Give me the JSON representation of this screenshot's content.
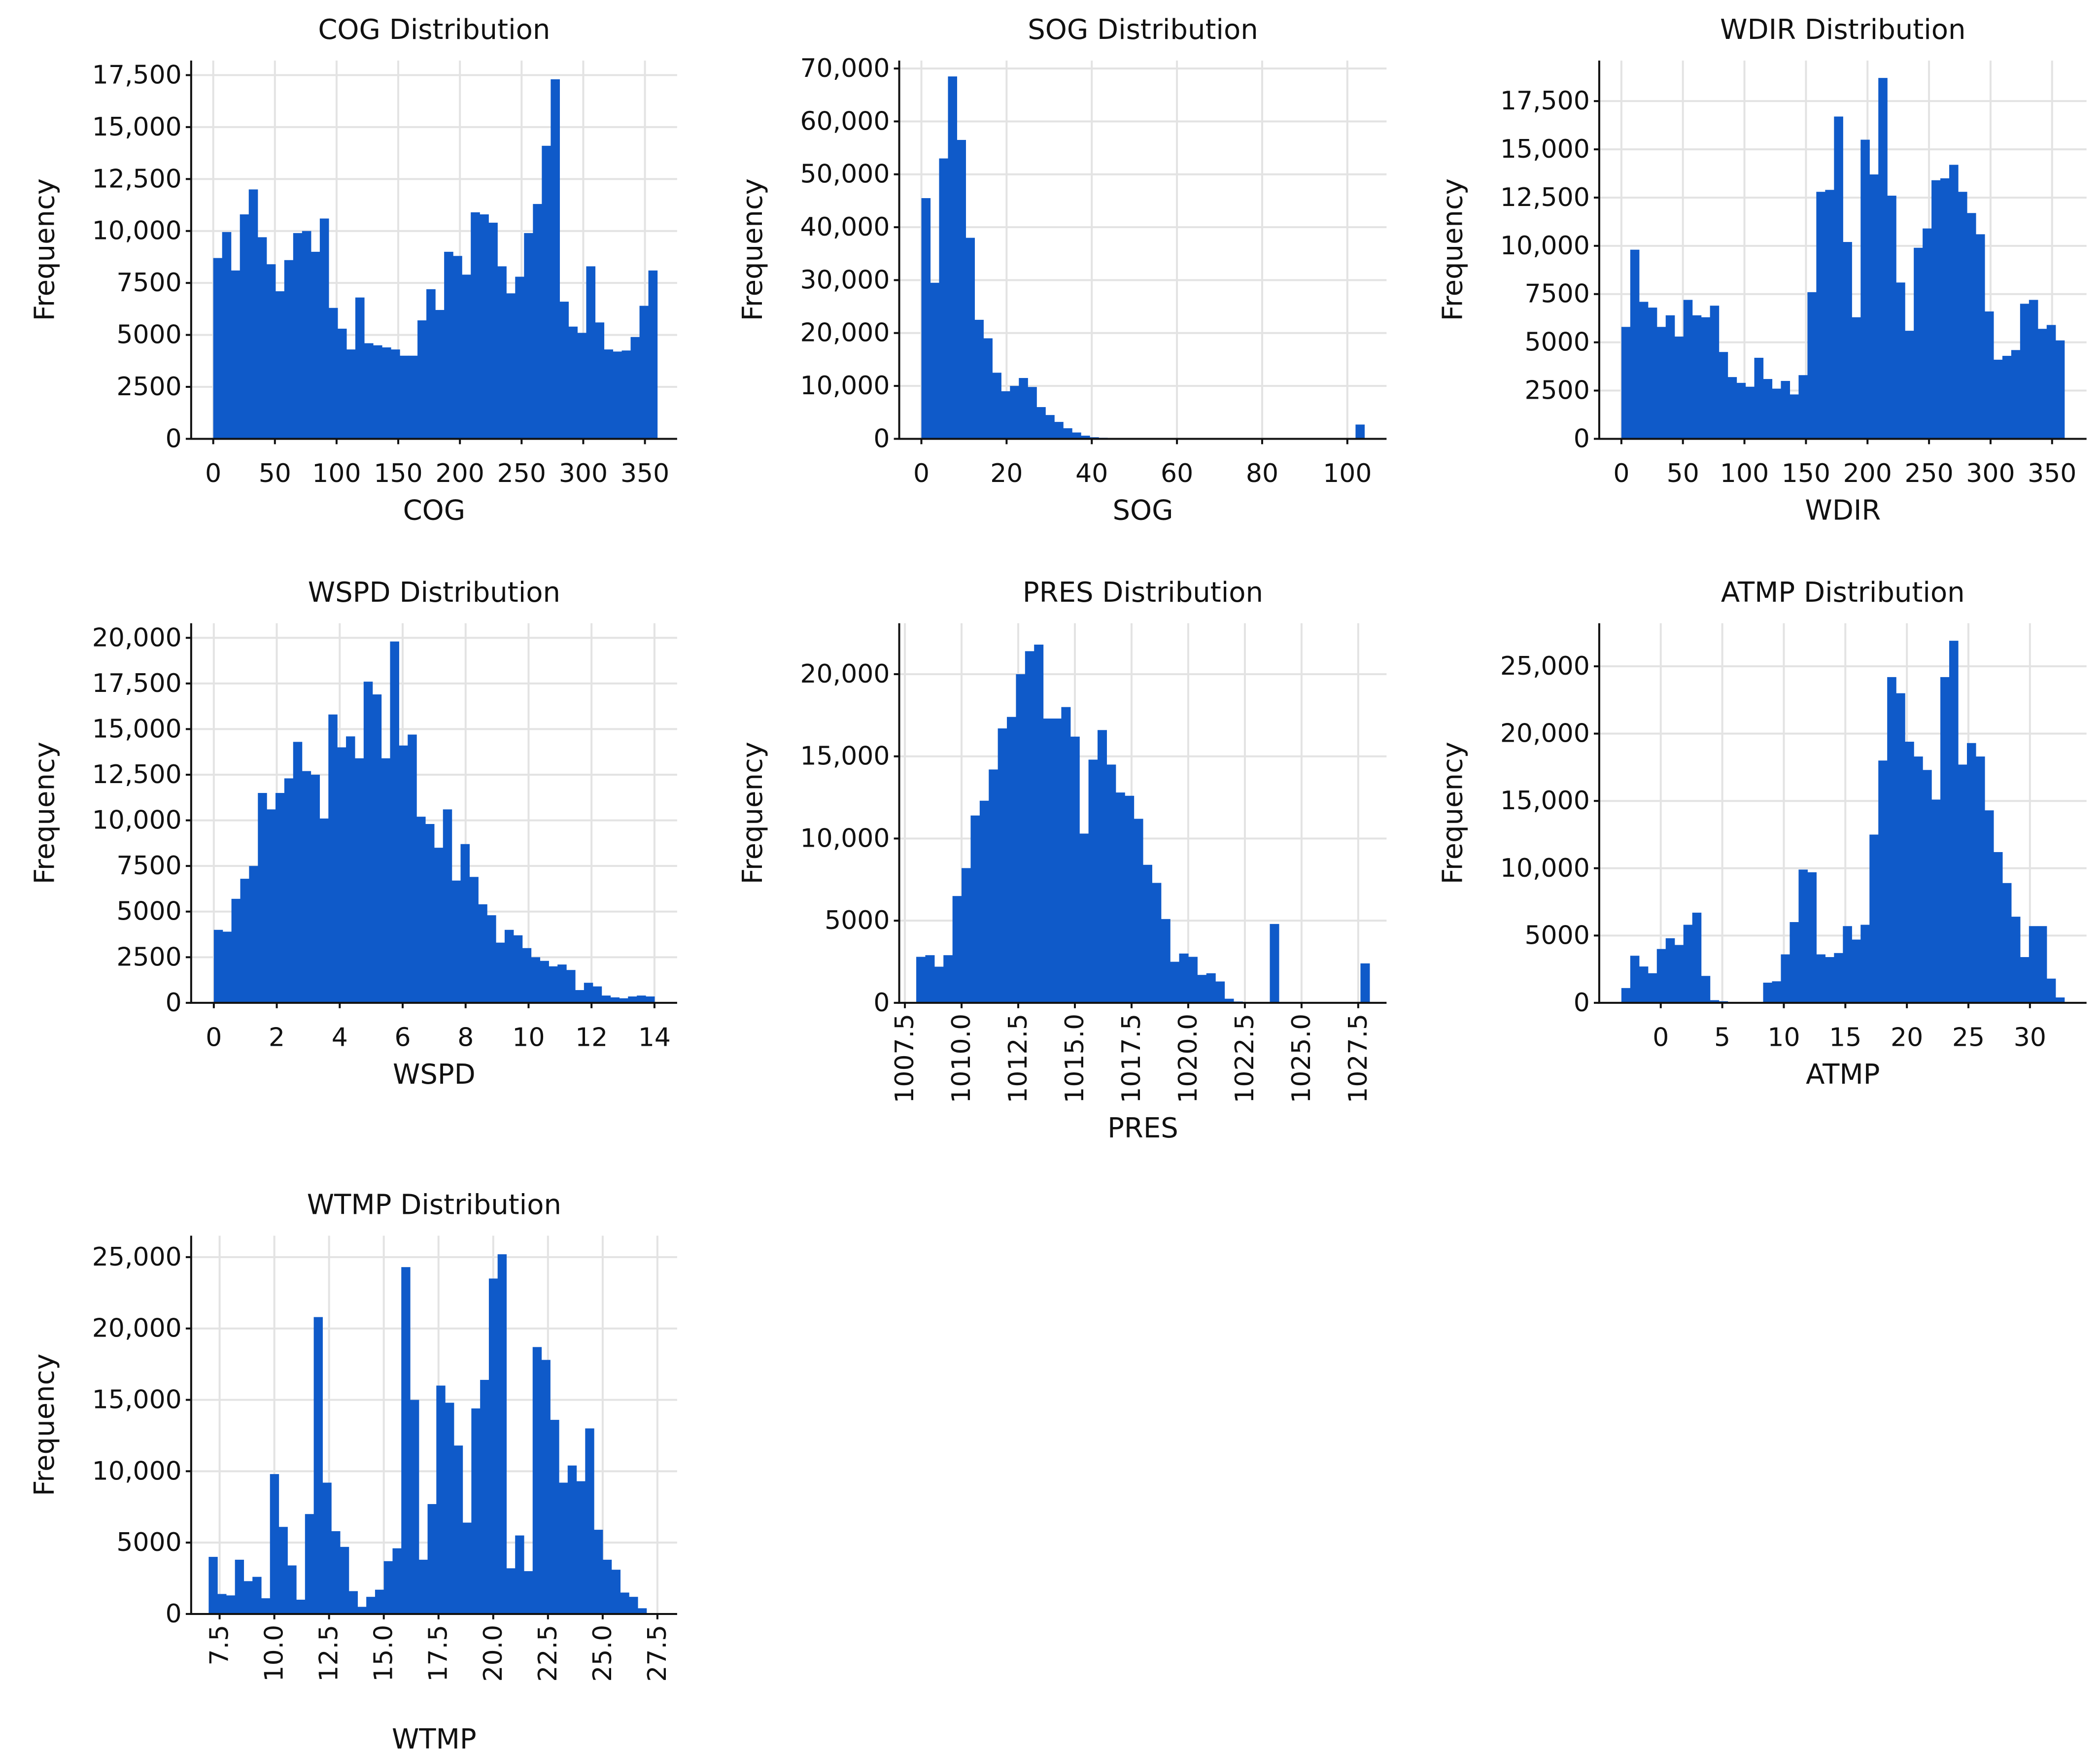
{
  "bar_color": "#0f5ac9",
  "chart_data": [
    {
      "type": "histogram",
      "title": "COG Distribution",
      "xlabel": "COG",
      "ylabel": "Frequency",
      "xlim": [
        -17.9,
        376.1
      ],
      "ylim": [
        0,
        18200
      ],
      "grid": true,
      "xtick_rotation": 0,
      "xticks": [
        0,
        50,
        100,
        150,
        200,
        250,
        300,
        350
      ],
      "xtick_labels": [
        "0",
        "50",
        "100",
        "150",
        "200",
        "250",
        "300",
        "350"
      ],
      "yticks": [
        0,
        2500,
        5000,
        7500,
        10000,
        12500,
        15000,
        17500
      ],
      "ytick_labels": [
        "0",
        "2500",
        "5000",
        "7500",
        "10,000",
        "12,500",
        "15,000",
        "17,500"
      ],
      "bin_start": 0,
      "bin_width": 7.2,
      "values": [
        8700,
        9950,
        8100,
        10800,
        12000,
        9700,
        8400,
        7100,
        8600,
        9900,
        10000,
        9000,
        10600,
        6300,
        5300,
        4300,
        6800,
        4600,
        4500,
        4400,
        4300,
        4000,
        4000,
        5700,
        7200,
        6200,
        9000,
        8800,
        7900,
        10900,
        10800,
        10400,
        8300,
        7000,
        7800,
        9900,
        11300,
        14100,
        17300,
        6600,
        5400,
        5100,
        8300,
        5600,
        4300,
        4200,
        4250,
        4900,
        6400,
        8100
      ]
    },
    {
      "type": "histogram",
      "title": "SOG Distribution",
      "xlabel": "SOG",
      "ylabel": "Frequency",
      "xlim": [
        -5.2,
        109.2
      ],
      "ylim": [
        0,
        71500
      ],
      "grid": true,
      "xtick_rotation": 0,
      "xticks": [
        0,
        20,
        40,
        60,
        80,
        100
      ],
      "xtick_labels": [
        "0",
        "20",
        "40",
        "60",
        "80",
        "100"
      ],
      "yticks": [
        0,
        10000,
        20000,
        30000,
        40000,
        50000,
        60000,
        70000
      ],
      "ytick_labels": [
        "0",
        "10,000",
        "20,000",
        "30,000",
        "40,000",
        "50,000",
        "60,000",
        "70,000"
      ],
      "bin_start": 0,
      "bin_width": 2.08,
      "values": [
        45500,
        29500,
        53000,
        68500,
        56500,
        38000,
        22500,
        19000,
        12500,
        9000,
        10000,
        11500,
        9800,
        6000,
        4500,
        3200,
        2000,
        1200,
        600,
        300,
        200,
        150,
        100,
        80,
        60,
        50,
        40,
        30,
        25,
        20,
        20,
        20,
        20,
        20,
        20,
        20,
        20,
        20,
        20,
        20,
        20,
        20,
        20,
        20,
        20,
        20,
        20,
        20,
        20,
        2700
      ]
    },
    {
      "type": "histogram",
      "title": "WDIR Distribution",
      "xlabel": "WDIR",
      "ylabel": "Frequency",
      "xlim": [
        -18,
        378
      ],
      "ylim": [
        0,
        19600
      ],
      "grid": true,
      "xtick_rotation": 0,
      "xticks": [
        0,
        50,
        100,
        150,
        200,
        250,
        300,
        350
      ],
      "xtick_labels": [
        "0",
        "50",
        "100",
        "150",
        "200",
        "250",
        "300",
        "350"
      ],
      "yticks": [
        0,
        2500,
        5000,
        7500,
        10000,
        12500,
        15000,
        17500
      ],
      "ytick_labels": [
        "0",
        "2500",
        "5000",
        "7500",
        "10,000",
        "12,500",
        "15,000",
        "17,500"
      ],
      "bin_start": 0,
      "bin_width": 7.2,
      "values": [
        5800,
        9800,
        7100,
        6800,
        5800,
        6400,
        5300,
        7200,
        6400,
        6300,
        6900,
        4500,
        3200,
        2900,
        2700,
        4200,
        3100,
        2600,
        3000,
        2300,
        3300,
        7600,
        12800,
        12900,
        16700,
        10200,
        6300,
        15500,
        13700,
        18700,
        12600,
        8100,
        5600,
        9900,
        10900,
        13400,
        13500,
        14200,
        12800,
        11700,
        10600,
        6600,
        4100,
        4300,
        4600,
        7000,
        7200,
        5700,
        5900,
        5100
      ]
    },
    {
      "type": "histogram",
      "title": "WSPD Distribution",
      "xlabel": "WSPD",
      "ylabel": "Frequency",
      "xlim": [
        -0.72,
        14.72
      ],
      "ylim": [
        0,
        20800
      ],
      "grid": true,
      "xtick_rotation": 0,
      "xticks": [
        0,
        2,
        4,
        6,
        8,
        10,
        12,
        14
      ],
      "xtick_labels": [
        "0",
        "2",
        "4",
        "6",
        "8",
        "10",
        "12",
        "14"
      ],
      "yticks": [
        0,
        2500,
        5000,
        7500,
        10000,
        12500,
        15000,
        17500,
        20000
      ],
      "ytick_labels": [
        "0",
        "2500",
        "5000",
        "7500",
        "10,000",
        "12,500",
        "15,000",
        "17,500",
        "20,000"
      ],
      "bin_start": 0,
      "bin_width": 0.28,
      "values": [
        4000,
        3900,
        5700,
        6800,
        7500,
        11500,
        10600,
        11500,
        12300,
        14300,
        12700,
        12500,
        10100,
        15800,
        14000,
        14600,
        13400,
        17600,
        16900,
        13400,
        19800,
        14100,
        14700,
        10200,
        9800,
        8500,
        10600,
        6700,
        8700,
        6900,
        5400,
        4800,
        3300,
        4000,
        3700,
        3000,
        2500,
        2300,
        2000,
        2100,
        1800,
        700,
        1100,
        900,
        400,
        300,
        250,
        350,
        400,
        350
      ]
    },
    {
      "type": "histogram",
      "title": "PRES Distribution",
      "xlabel": "PRES",
      "ylabel": "Frequency",
      "xlim": [
        1007.25,
        1028.75
      ],
      "ylim": [
        0,
        23100
      ],
      "grid": true,
      "xtick_rotation": -90,
      "xticks": [
        1007.5,
        1010.0,
        1012.5,
        1015.0,
        1017.5,
        1020.0,
        1022.5,
        1025.0,
        1027.5
      ],
      "xtick_labels": [
        "1007.5",
        "1010.0",
        "1012.5",
        "1015.0",
        "1017.5",
        "1020.0",
        "1022.5",
        "1025.0",
        "1027.5"
      ],
      "yticks": [
        0,
        5000,
        10000,
        15000,
        20000
      ],
      "ytick_labels": [
        "0",
        "5000",
        "10,000",
        "15,000",
        "20,000"
      ],
      "bin_start": 1008.0,
      "bin_width": 0.4,
      "values": [
        2800,
        2900,
        2200,
        2900,
        6500,
        8200,
        11400,
        12300,
        14200,
        16700,
        17400,
        20000,
        21400,
        21800,
        17300,
        17300,
        18000,
        16200,
        10300,
        14800,
        16600,
        14500,
        12800,
        12600,
        11200,
        8400,
        7300,
        5100,
        2500,
        3000,
        2800,
        1700,
        1800,
        1300,
        250,
        80,
        40,
        20,
        20,
        4800,
        15,
        15,
        15,
        15,
        15,
        15,
        15,
        15,
        15,
        2400
      ]
    },
    {
      "type": "histogram",
      "title": "ATMP Distribution",
      "xlabel": "ATMP",
      "ylabel": "Frequency",
      "xlim": [
        -5.0,
        34.6
      ],
      "ylim": [
        0,
        28200
      ],
      "grid": true,
      "xtick_rotation": 0,
      "xticks": [
        0,
        5,
        10,
        15,
        20,
        25,
        30
      ],
      "xtick_labels": [
        "0",
        "5",
        "10",
        "15",
        "20",
        "25",
        "30"
      ],
      "yticks": [
        0,
        5000,
        10000,
        15000,
        20000,
        25000
      ],
      "ytick_labels": [
        "0",
        "5000",
        "10,000",
        "15,000",
        "20,000",
        "25,000"
      ],
      "bin_start": -3.2,
      "bin_width": 0.72,
      "values": [
        1100,
        3500,
        2700,
        2200,
        4000,
        4800,
        4300,
        5800,
        6700,
        2000,
        200,
        120,
        60,
        40,
        30,
        30,
        1500,
        1600,
        3600,
        6000,
        9900,
        9700,
        3600,
        3400,
        3700,
        5700,
        4700,
        5800,
        12500,
        18000,
        24200,
        23000,
        19400,
        18300,
        17300,
        15100,
        24200,
        26900,
        17700,
        19300,
        18300,
        14300,
        11200,
        8900,
        6400,
        3400,
        5700,
        5700,
        1800,
        400
      ]
    },
    {
      "type": "histogram",
      "title": "WTMP Distribution",
      "xlabel": "WTMP",
      "ylabel": "Frequency",
      "xlim": [
        6.2,
        28.4
      ],
      "ylim": [
        0,
        26500
      ],
      "grid": true,
      "xtick_rotation": -90,
      "xticks": [
        7.5,
        10.0,
        12.5,
        15.0,
        17.5,
        20.0,
        22.5,
        25.0,
        27.5
      ],
      "xtick_labels": [
        "7.5",
        "10.0",
        "12.5",
        "15.0",
        "17.5",
        "20.0",
        "22.5",
        "25.0",
        "27.5"
      ],
      "yticks": [
        0,
        5000,
        10000,
        15000,
        20000,
        25000
      ],
      "ytick_labels": [
        "0",
        "5000",
        "10,000",
        "15,000",
        "20,000",
        "25,000"
      ],
      "bin_start": 7.0,
      "bin_width": 0.4,
      "values": [
        4000,
        1400,
        1300,
        3800,
        2300,
        2600,
        1100,
        9800,
        6100,
        3400,
        1000,
        7000,
        20800,
        9200,
        5800,
        4700,
        1600,
        500,
        1200,
        1700,
        3700,
        4600,
        24300,
        15000,
        3800,
        7700,
        16000,
        14800,
        11800,
        6400,
        14400,
        16400,
        23500,
        25200,
        3200,
        5500,
        3000,
        18700,
        17800,
        13600,
        9200,
        10400,
        9300,
        13000,
        5900,
        3800,
        3100,
        1500,
        1200,
        400
      ]
    }
  ]
}
